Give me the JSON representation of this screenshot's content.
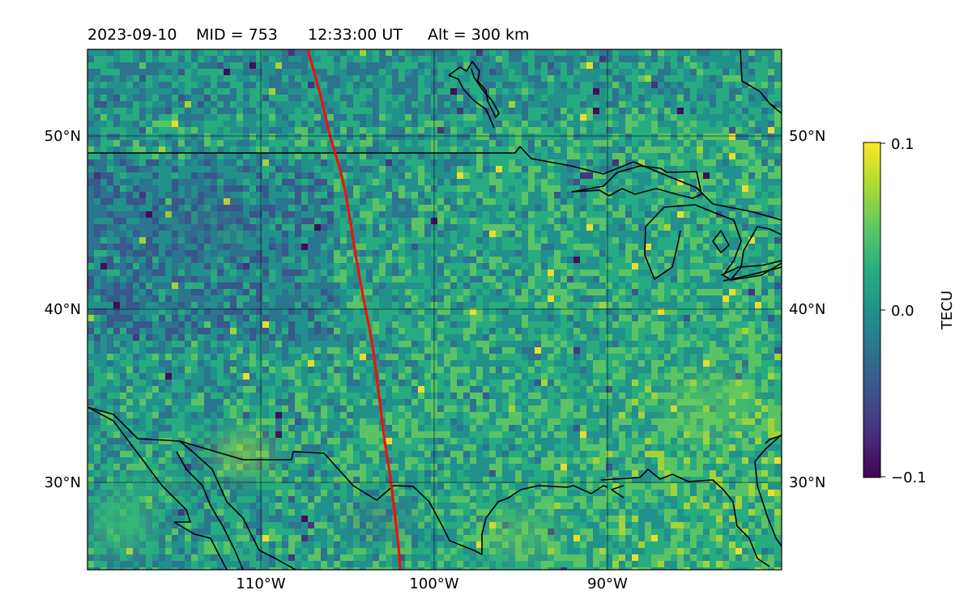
{
  "title": {
    "date": "2023-09-10",
    "mid": "MID = 753",
    "time": "12:33:00  UT",
    "alt": "Alt = 300 km"
  },
  "map": {
    "extent": {
      "lon": [
        -120,
        -80
      ],
      "lat": [
        25,
        55
      ]
    },
    "gridlines": {
      "lons": [
        -110,
        -100,
        -90
      ],
      "lats": [
        30,
        40,
        50
      ]
    },
    "x_ticks": [
      "110°W",
      "100°W",
      "90°W"
    ],
    "y_ticks": [
      "30°N",
      "40°N",
      "50°N"
    ],
    "track_color": "#e8150e"
  },
  "colorbar": {
    "label": "TECU",
    "ticks": [
      "0.1",
      "0.0",
      "−0.1"
    ],
    "range": [
      -0.1,
      0.1
    ],
    "colormap": "viridis"
  }
}
